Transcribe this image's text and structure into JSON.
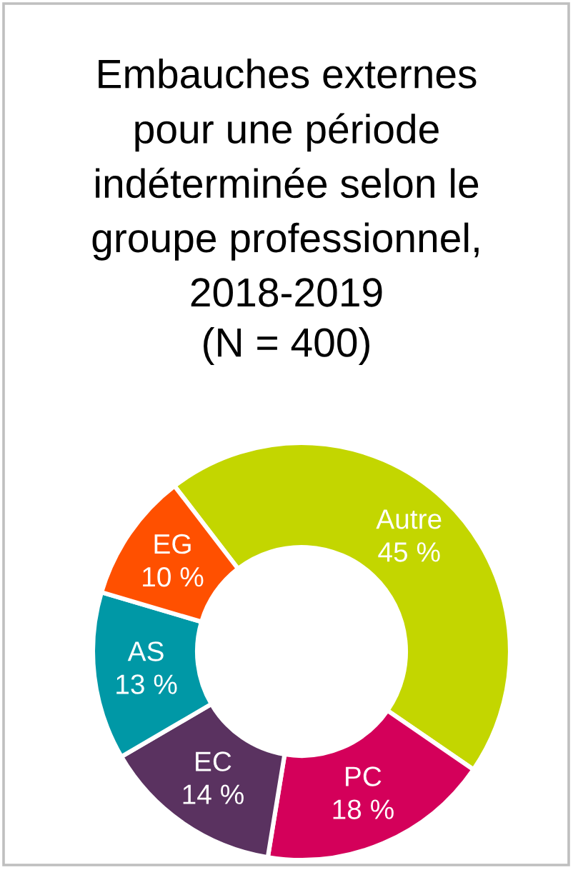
{
  "chart_data": {
    "type": "donut",
    "title": "Embauches externes\npour une période\nindéterminée selon le\ngroupe professionnel,\n2018-2019",
    "subtitle": "(N = 400)",
    "categories": [
      "Autre",
      "PC",
      "EC",
      "AS",
      "EG"
    ],
    "values": [
      45,
      18,
      14,
      13,
      10
    ],
    "value_labels": [
      "45 %",
      "18 %",
      "14 %",
      "13 %",
      "10 %"
    ],
    "colors": [
      "#c3d600",
      "#d4005a",
      "#5a3260",
      "#0098a6",
      "#ff5000"
    ],
    "legend": false
  }
}
